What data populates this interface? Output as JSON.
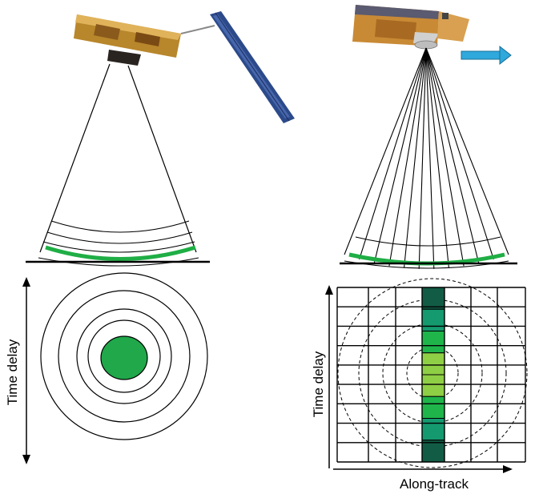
{
  "left_panel": {
    "time_axis_label": "Time delay",
    "colors": {
      "waveform_arc": "#1fae45",
      "footprint_disc": "#20a84a",
      "lines": "#000000"
    },
    "concentric_rings": 4
  },
  "right_panel": {
    "time_axis_label": "Time delay",
    "along_track_label": "Along-track",
    "direction_arrow": "right-arrow",
    "colors": {
      "waveform_arc": "#1fae45",
      "arrow": "#2fa8dc",
      "strip_dark": "#125c45",
      "strip_mid": "#149a6e",
      "strip_green": "#1fb54b",
      "strip_center": "#8fcf45"
    },
    "beams": 12,
    "strip_cells": [
      "strip_dark",
      "strip_mid",
      "strip_green",
      "strip_center",
      "strip_center",
      "strip_green",
      "strip_mid",
      "strip_dark"
    ]
  },
  "icons": [
    "satellite-conventional-altimeter-icon",
    "satellite-delay-doppler-altimeter-icon"
  ]
}
